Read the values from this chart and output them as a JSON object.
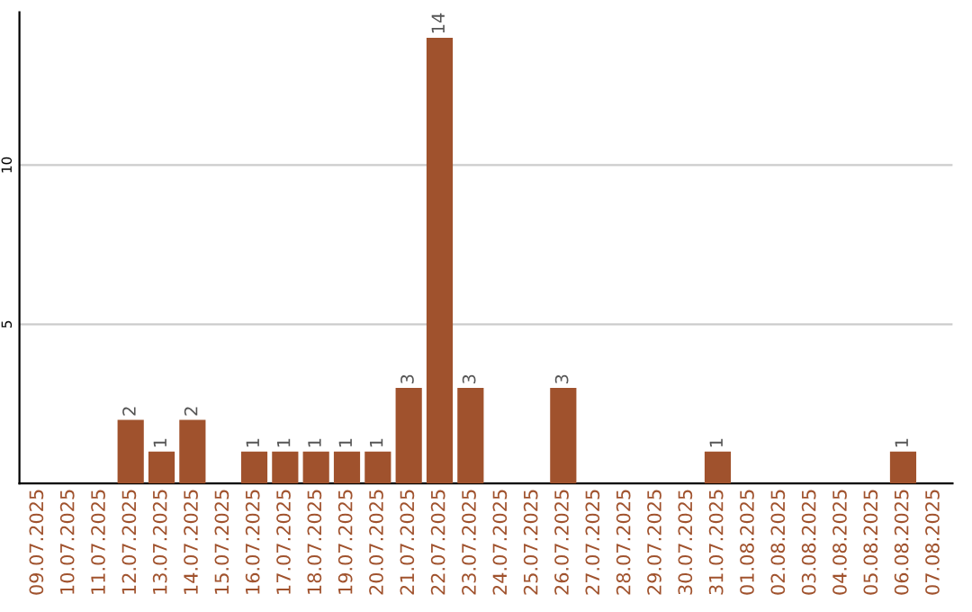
{
  "chart_data": {
    "type": "bar",
    "categories": [
      "09.07.2025",
      "10.07.2025",
      "11.07.2025",
      "12.07.2025",
      "13.07.2025",
      "14.07.2025",
      "15.07.2025",
      "16.07.2025",
      "17.07.2025",
      "18.07.2025",
      "19.07.2025",
      "20.07.2025",
      "21.07.2025",
      "22.07.2025",
      "23.07.2025",
      "24.07.2025",
      "25.07.2025",
      "26.07.2025",
      "27.07.2025",
      "28.07.2025",
      "29.07.2025",
      "30.07.2025",
      "31.07.2025",
      "01.08.2025",
      "02.08.2025",
      "03.08.2025",
      "04.08.2025",
      "05.08.2025",
      "06.08.2025",
      "07.08.2025"
    ],
    "values": [
      0,
      0,
      0,
      2,
      1,
      2,
      0,
      1,
      1,
      1,
      1,
      1,
      3,
      14,
      3,
      0,
      0,
      3,
      0,
      0,
      0,
      0,
      1,
      0,
      0,
      0,
      0,
      0,
      1,
      0
    ],
    "value_labels": [
      null,
      null,
      null,
      "2",
      "1",
      "2",
      null,
      "1",
      "1",
      "1",
      "1",
      "1",
      "3",
      "14",
      "3",
      null,
      null,
      "3",
      null,
      null,
      null,
      null,
      "1",
      null,
      null,
      null,
      null,
      null,
      "1",
      null
    ],
    "color": "#a0522d",
    "ylim": [
      0,
      14.8
    ],
    "yticks": [
      5,
      10
    ],
    "grid": "y",
    "legend": false
  }
}
